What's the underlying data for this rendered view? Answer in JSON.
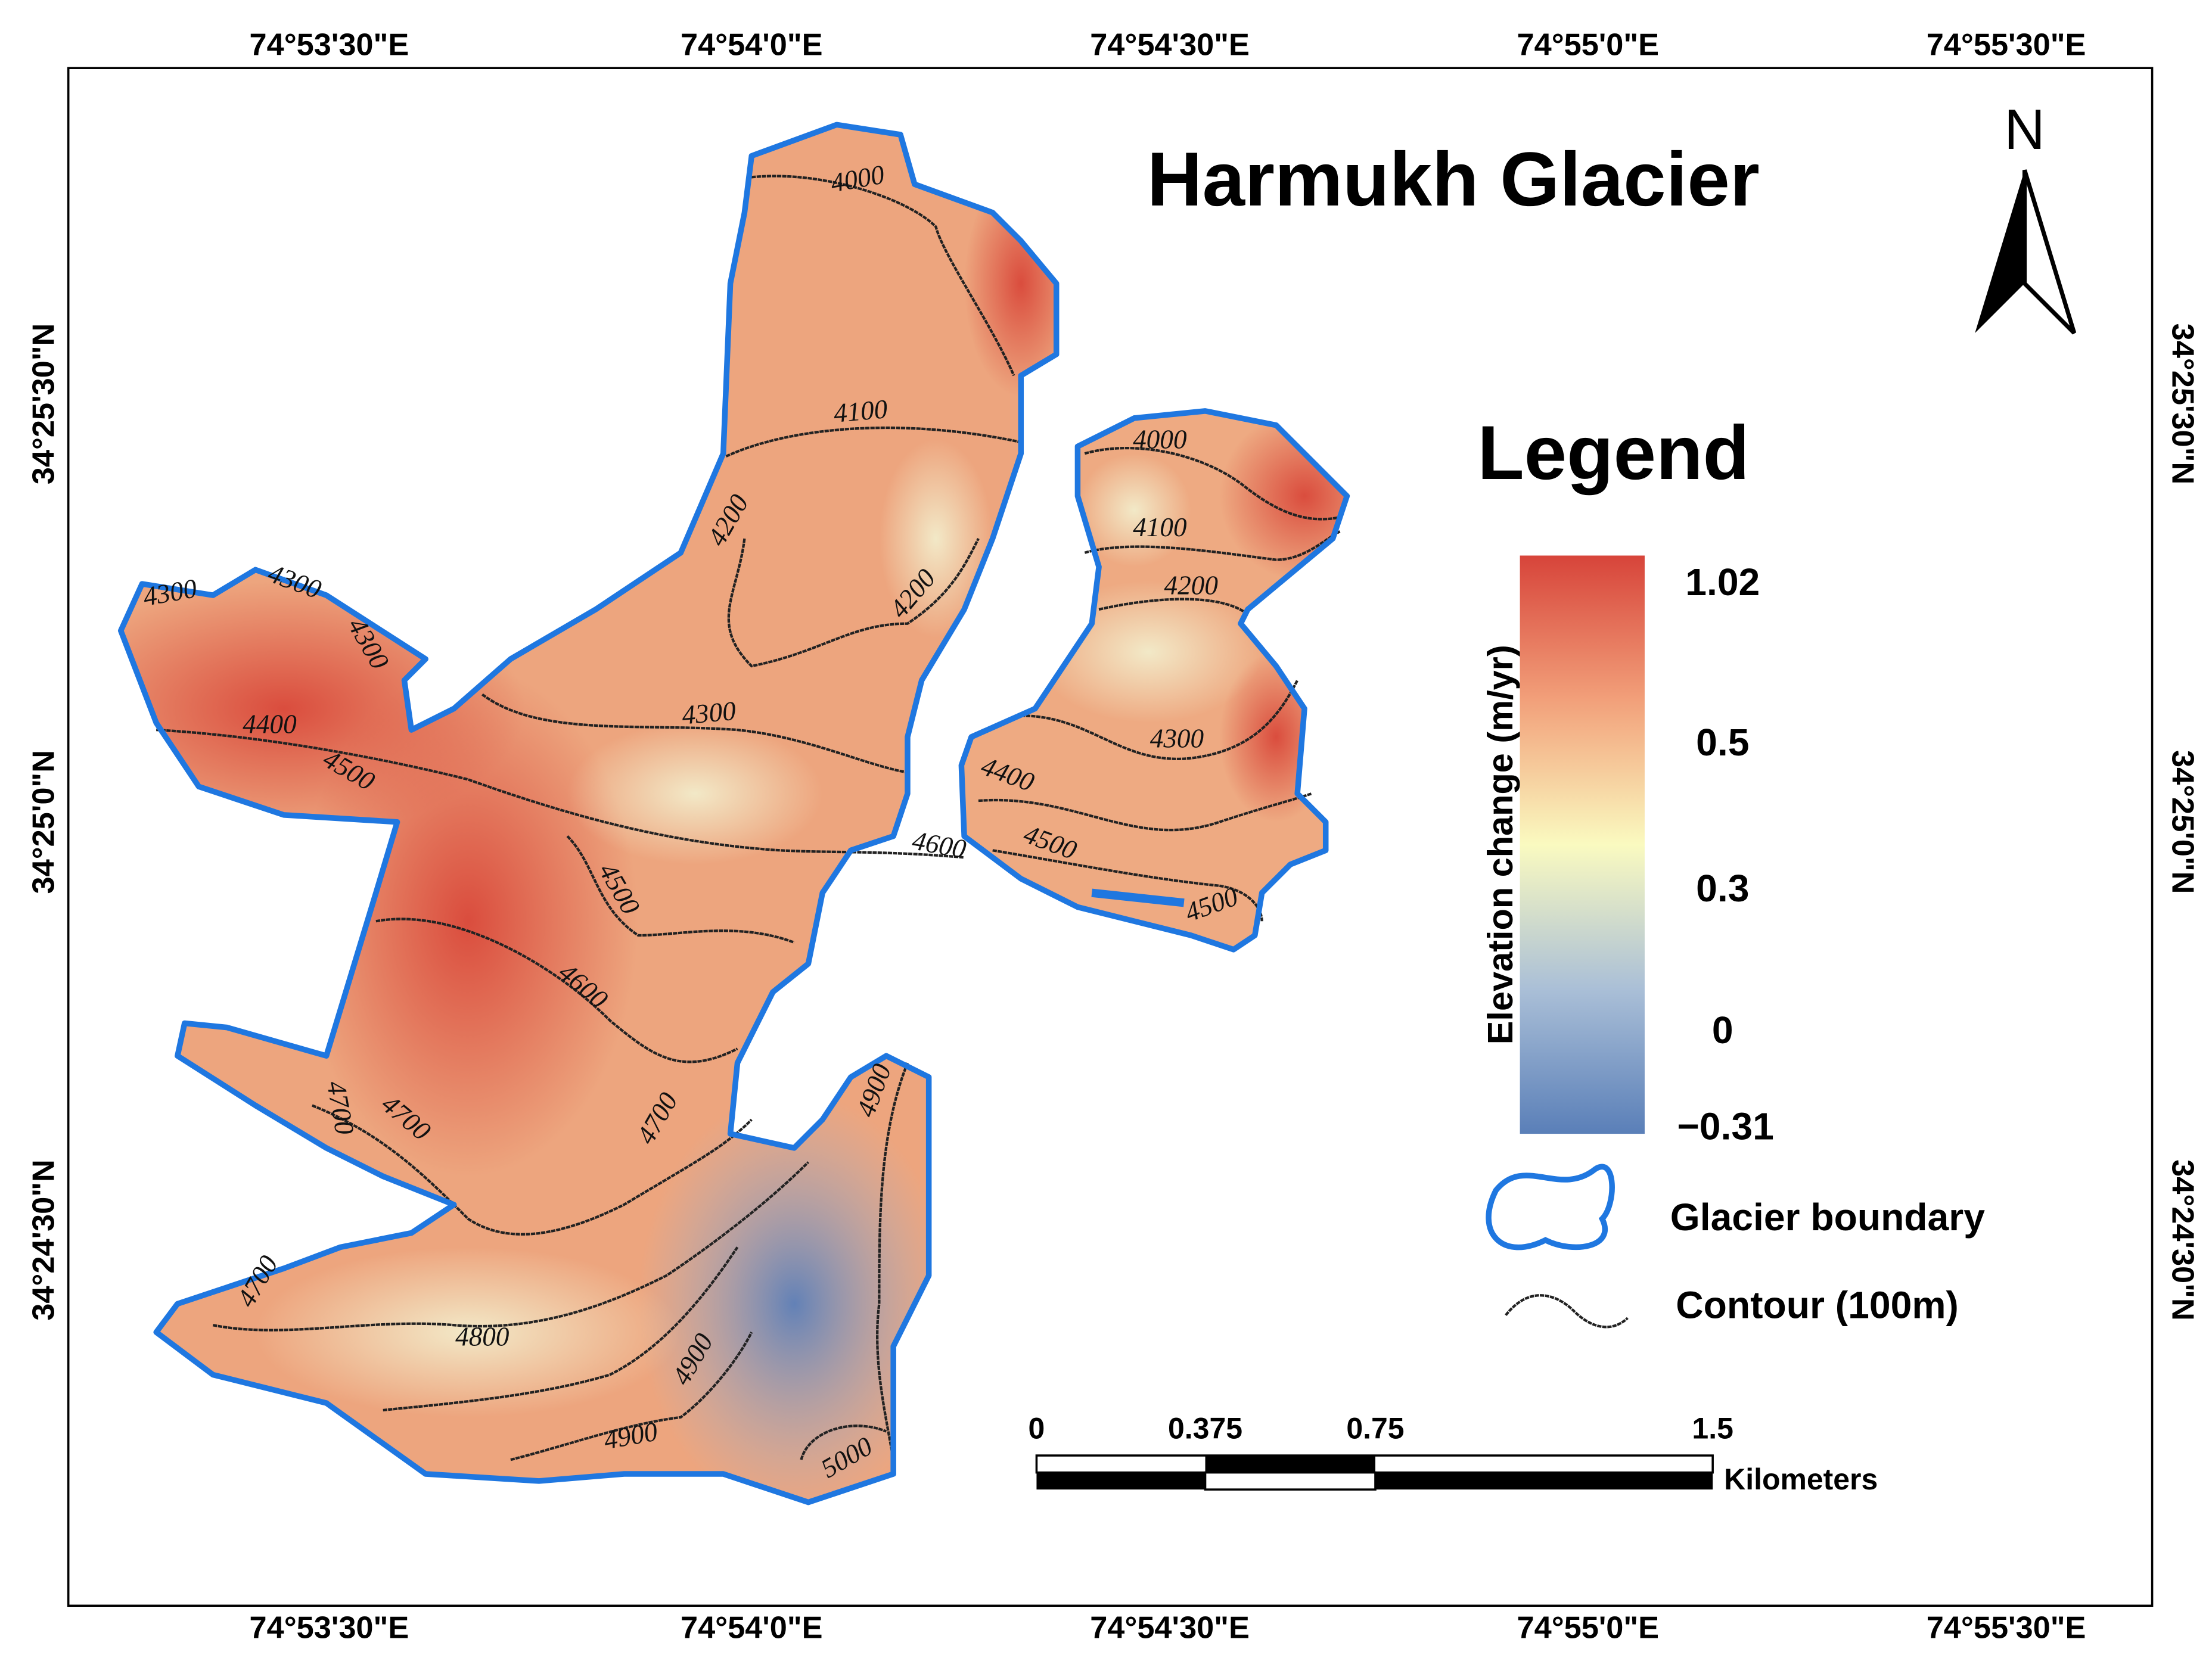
{
  "title": "Harmukh Glacier",
  "north_arrow": {
    "label": "N"
  },
  "legend": {
    "title": "Legend",
    "colorbar": {
      "label": "Elevation change (m/yr)",
      "tick_labels": [
        "1.02",
        "0.5",
        "0.3",
        "0",
        "−0.31"
      ]
    },
    "items": [
      "Glacier boundary",
      "Contour (100m)"
    ]
  },
  "scale_bar": {
    "labels": [
      "0",
      "0.375",
      "0.75",
      "1.5"
    ],
    "unit": "Kilometers"
  },
  "graticule": {
    "longitude_labels": [
      "74°53'30\"E",
      "74°54'0\"E",
      "74°54'30\"E",
      "74°55'0\"E",
      "74°55'30\"E"
    ],
    "latitude_labels": [
      "34°25'30\"N",
      "34°25'0\"N",
      "34°24'30\"N"
    ]
  },
  "contour_labels": [
    "4000",
    "4100",
    "4200",
    "4200",
    "4300",
    "4300",
    "4300",
    "4400",
    "4500",
    "4300",
    "4500",
    "4600",
    "4700",
    "4700",
    "4700",
    "4700",
    "4800",
    "4900",
    "4900",
    "4900",
    "5000",
    "4000",
    "4100",
    "4200",
    "4300",
    "4400",
    "4600",
    "4500",
    "4500"
  ]
}
